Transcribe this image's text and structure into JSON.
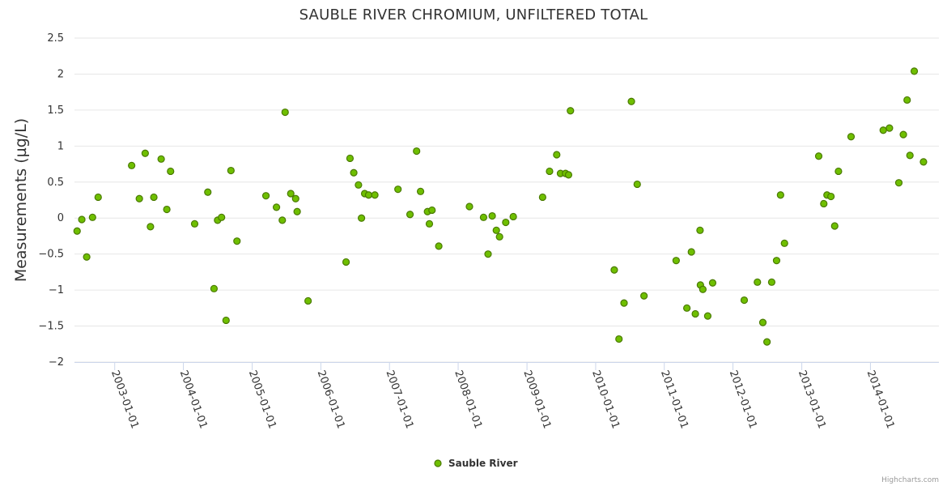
{
  "chart_data": {
    "type": "scatter",
    "title": "SAUBLE RIVER CHROMIUM, UNFILTERED TOTAL",
    "ylabel": "Measurements (µg/L)",
    "xlabel": "",
    "ylim": [
      -2,
      2.5
    ],
    "xlim": [
      "2002-06-01",
      "2014-12-31"
    ],
    "yticks": [
      "2.5",
      "2",
      "1.5",
      "1",
      "0.5",
      "0",
      "−0.5",
      "−1",
      "−1.5",
      "−2"
    ],
    "ytick_values": [
      2.5,
      2,
      1.5,
      1,
      0.5,
      0,
      -0.5,
      -1,
      -1.5,
      -2
    ],
    "xticks": [
      "2003-01-01",
      "2004-01-01",
      "2005-01-01",
      "2006-01-01",
      "2007-01-01",
      "2008-01-01",
      "2009-01-01",
      "2010-01-01",
      "2011-01-01",
      "2012-01-01",
      "2013-01-01",
      "2014-01-01"
    ],
    "grid": true,
    "legend_position": "bottom-center",
    "series": [
      {
        "name": "Sauble River",
        "color": "#6fbf00",
        "points": [
          {
            "x": "2002-06-15",
            "y": -0.18
          },
          {
            "x": "2002-07-10",
            "y": -0.02
          },
          {
            "x": "2002-08-05",
            "y": -0.54
          },
          {
            "x": "2002-09-05",
            "y": 0.01
          },
          {
            "x": "2002-10-05",
            "y": 0.29
          },
          {
            "x": "2003-04-01",
            "y": 0.73
          },
          {
            "x": "2003-05-12",
            "y": 0.27
          },
          {
            "x": "2003-06-12",
            "y": 0.9
          },
          {
            "x": "2003-07-10",
            "y": -0.12
          },
          {
            "x": "2003-07-28",
            "y": 0.29
          },
          {
            "x": "2003-09-05",
            "y": 0.82
          },
          {
            "x": "2003-10-05",
            "y": 0.12
          },
          {
            "x": "2003-10-25",
            "y": 0.65
          },
          {
            "x": "2004-03-01",
            "y": -0.08
          },
          {
            "x": "2004-05-10",
            "y": 0.36
          },
          {
            "x": "2004-06-12",
            "y": -0.98
          },
          {
            "x": "2004-07-01",
            "y": -0.03
          },
          {
            "x": "2004-07-22",
            "y": 0.01
          },
          {
            "x": "2004-08-15",
            "y": -1.42
          },
          {
            "x": "2004-09-10",
            "y": 0.66
          },
          {
            "x": "2004-10-12",
            "y": -0.32
          },
          {
            "x": "2005-03-15",
            "y": 0.31
          },
          {
            "x": "2005-05-10",
            "y": 0.15
          },
          {
            "x": "2005-06-10",
            "y": -0.03
          },
          {
            "x": "2005-06-25",
            "y": 1.47
          },
          {
            "x": "2005-07-25",
            "y": 0.34
          },
          {
            "x": "2005-08-20",
            "y": 0.27
          },
          {
            "x": "2005-08-28",
            "y": 0.09
          },
          {
            "x": "2005-10-25",
            "y": -1.15
          },
          {
            "x": "2006-05-15",
            "y": -0.61
          },
          {
            "x": "2006-06-05",
            "y": 0.83
          },
          {
            "x": "2006-06-25",
            "y": 0.63
          },
          {
            "x": "2006-07-20",
            "y": 0.46
          },
          {
            "x": "2006-08-05",
            "y": 0.0
          },
          {
            "x": "2006-08-22",
            "y": 0.34
          },
          {
            "x": "2006-09-12",
            "y": 0.32
          },
          {
            "x": "2006-10-15",
            "y": 0.32
          },
          {
            "x": "2007-02-15",
            "y": 0.4
          },
          {
            "x": "2007-04-20",
            "y": 0.05
          },
          {
            "x": "2007-05-25",
            "y": 0.93
          },
          {
            "x": "2007-06-15",
            "y": 0.37
          },
          {
            "x": "2007-07-22",
            "y": 0.09
          },
          {
            "x": "2007-08-01",
            "y": -0.08
          },
          {
            "x": "2007-08-15",
            "y": 0.11
          },
          {
            "x": "2007-09-20",
            "y": -0.39
          },
          {
            "x": "2008-03-01",
            "y": 0.16
          },
          {
            "x": "2008-05-15",
            "y": 0.01
          },
          {
            "x": "2008-06-08",
            "y": -0.5
          },
          {
            "x": "2008-06-30",
            "y": 0.03
          },
          {
            "x": "2008-07-22",
            "y": -0.17
          },
          {
            "x": "2008-08-08",
            "y": -0.26
          },
          {
            "x": "2008-09-10",
            "y": -0.06
          },
          {
            "x": "2008-10-20",
            "y": 0.02
          },
          {
            "x": "2009-03-25",
            "y": 0.29
          },
          {
            "x": "2009-05-01",
            "y": 0.65
          },
          {
            "x": "2009-06-08",
            "y": 0.88
          },
          {
            "x": "2009-06-28",
            "y": 0.62
          },
          {
            "x": "2009-07-25",
            "y": 0.62
          },
          {
            "x": "2009-08-10",
            "y": 0.6
          },
          {
            "x": "2009-08-20",
            "y": 1.49
          },
          {
            "x": "2010-04-10",
            "y": -0.72
          },
          {
            "x": "2010-05-05",
            "y": -1.68
          },
          {
            "x": "2010-06-01",
            "y": -1.18
          },
          {
            "x": "2010-07-10",
            "y": 1.62
          },
          {
            "x": "2010-08-10",
            "y": 0.47
          },
          {
            "x": "2010-09-15",
            "y": -1.08
          },
          {
            "x": "2011-03-05",
            "y": -0.59
          },
          {
            "x": "2011-05-01",
            "y": -1.25
          },
          {
            "x": "2011-05-25",
            "y": -0.47
          },
          {
            "x": "2011-06-15",
            "y": -1.33
          },
          {
            "x": "2011-07-10",
            "y": -0.17
          },
          {
            "x": "2011-07-12",
            "y": -0.93
          },
          {
            "x": "2011-07-25",
            "y": -0.99
          },
          {
            "x": "2011-08-20",
            "y": -1.36
          },
          {
            "x": "2011-09-15",
            "y": -0.9
          },
          {
            "x": "2012-03-01",
            "y": -1.14
          },
          {
            "x": "2012-05-10",
            "y": -0.89
          },
          {
            "x": "2012-06-08",
            "y": -1.45
          },
          {
            "x": "2012-06-30",
            "y": -1.72
          },
          {
            "x": "2012-07-25",
            "y": -0.89
          },
          {
            "x": "2012-08-20",
            "y": -0.59
          },
          {
            "x": "2012-09-10",
            "y": 0.32
          },
          {
            "x": "2012-10-01",
            "y": -0.35
          },
          {
            "x": "2013-04-01",
            "y": 0.86
          },
          {
            "x": "2013-04-28",
            "y": 0.2
          },
          {
            "x": "2013-05-15",
            "y": 0.32
          },
          {
            "x": "2013-06-05",
            "y": 0.3
          },
          {
            "x": "2013-06-25",
            "y": -0.11
          },
          {
            "x": "2013-07-15",
            "y": 0.65
          },
          {
            "x": "2013-09-20",
            "y": 1.13
          },
          {
            "x": "2014-03-10",
            "y": 1.22
          },
          {
            "x": "2014-04-12",
            "y": 1.25
          },
          {
            "x": "2014-06-01",
            "y": 0.49
          },
          {
            "x": "2014-06-25",
            "y": 1.16
          },
          {
            "x": "2014-07-15",
            "y": 1.64
          },
          {
            "x": "2014-07-30",
            "y": 0.87
          },
          {
            "x": "2014-08-22",
            "y": 2.04
          },
          {
            "x": "2014-10-10",
            "y": 0.78
          }
        ]
      }
    ]
  },
  "credits": "Highcharts.com"
}
